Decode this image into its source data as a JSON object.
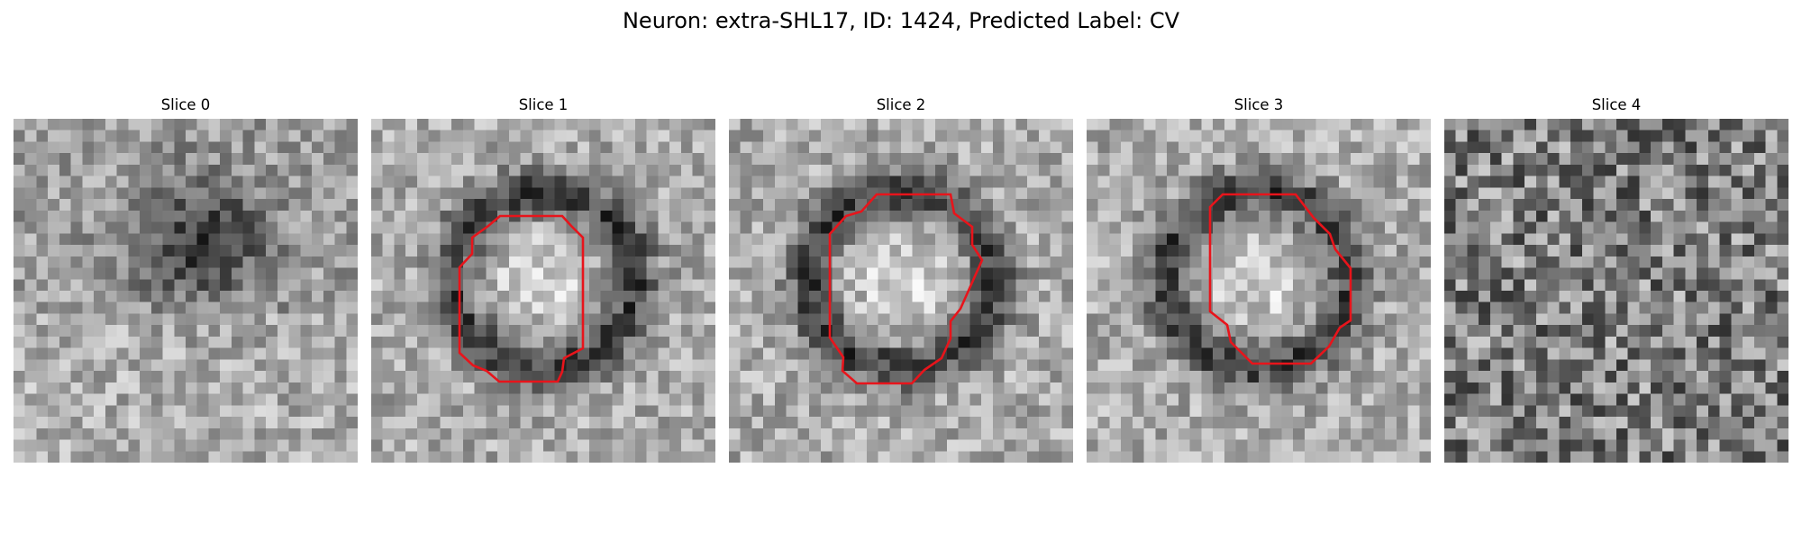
{
  "figure": {
    "title": "Neuron: extra-SHL17, ID: 1424, Predicted Label: CV"
  },
  "colors": {
    "contour": "#e8141b",
    "colormap": "gray"
  },
  "panels": [
    {
      "title": "Slice 0",
      "pattern": "diffuse-dark-blob",
      "has_contour": false
    },
    {
      "title": "Slice 1",
      "pattern": "ring",
      "has_contour": true
    },
    {
      "title": "Slice 2",
      "pattern": "ring",
      "has_contour": true
    },
    {
      "title": "Slice 3",
      "pattern": "ring",
      "has_contour": true
    },
    {
      "title": "Slice 4",
      "pattern": "noise",
      "has_contour": false
    }
  ]
}
